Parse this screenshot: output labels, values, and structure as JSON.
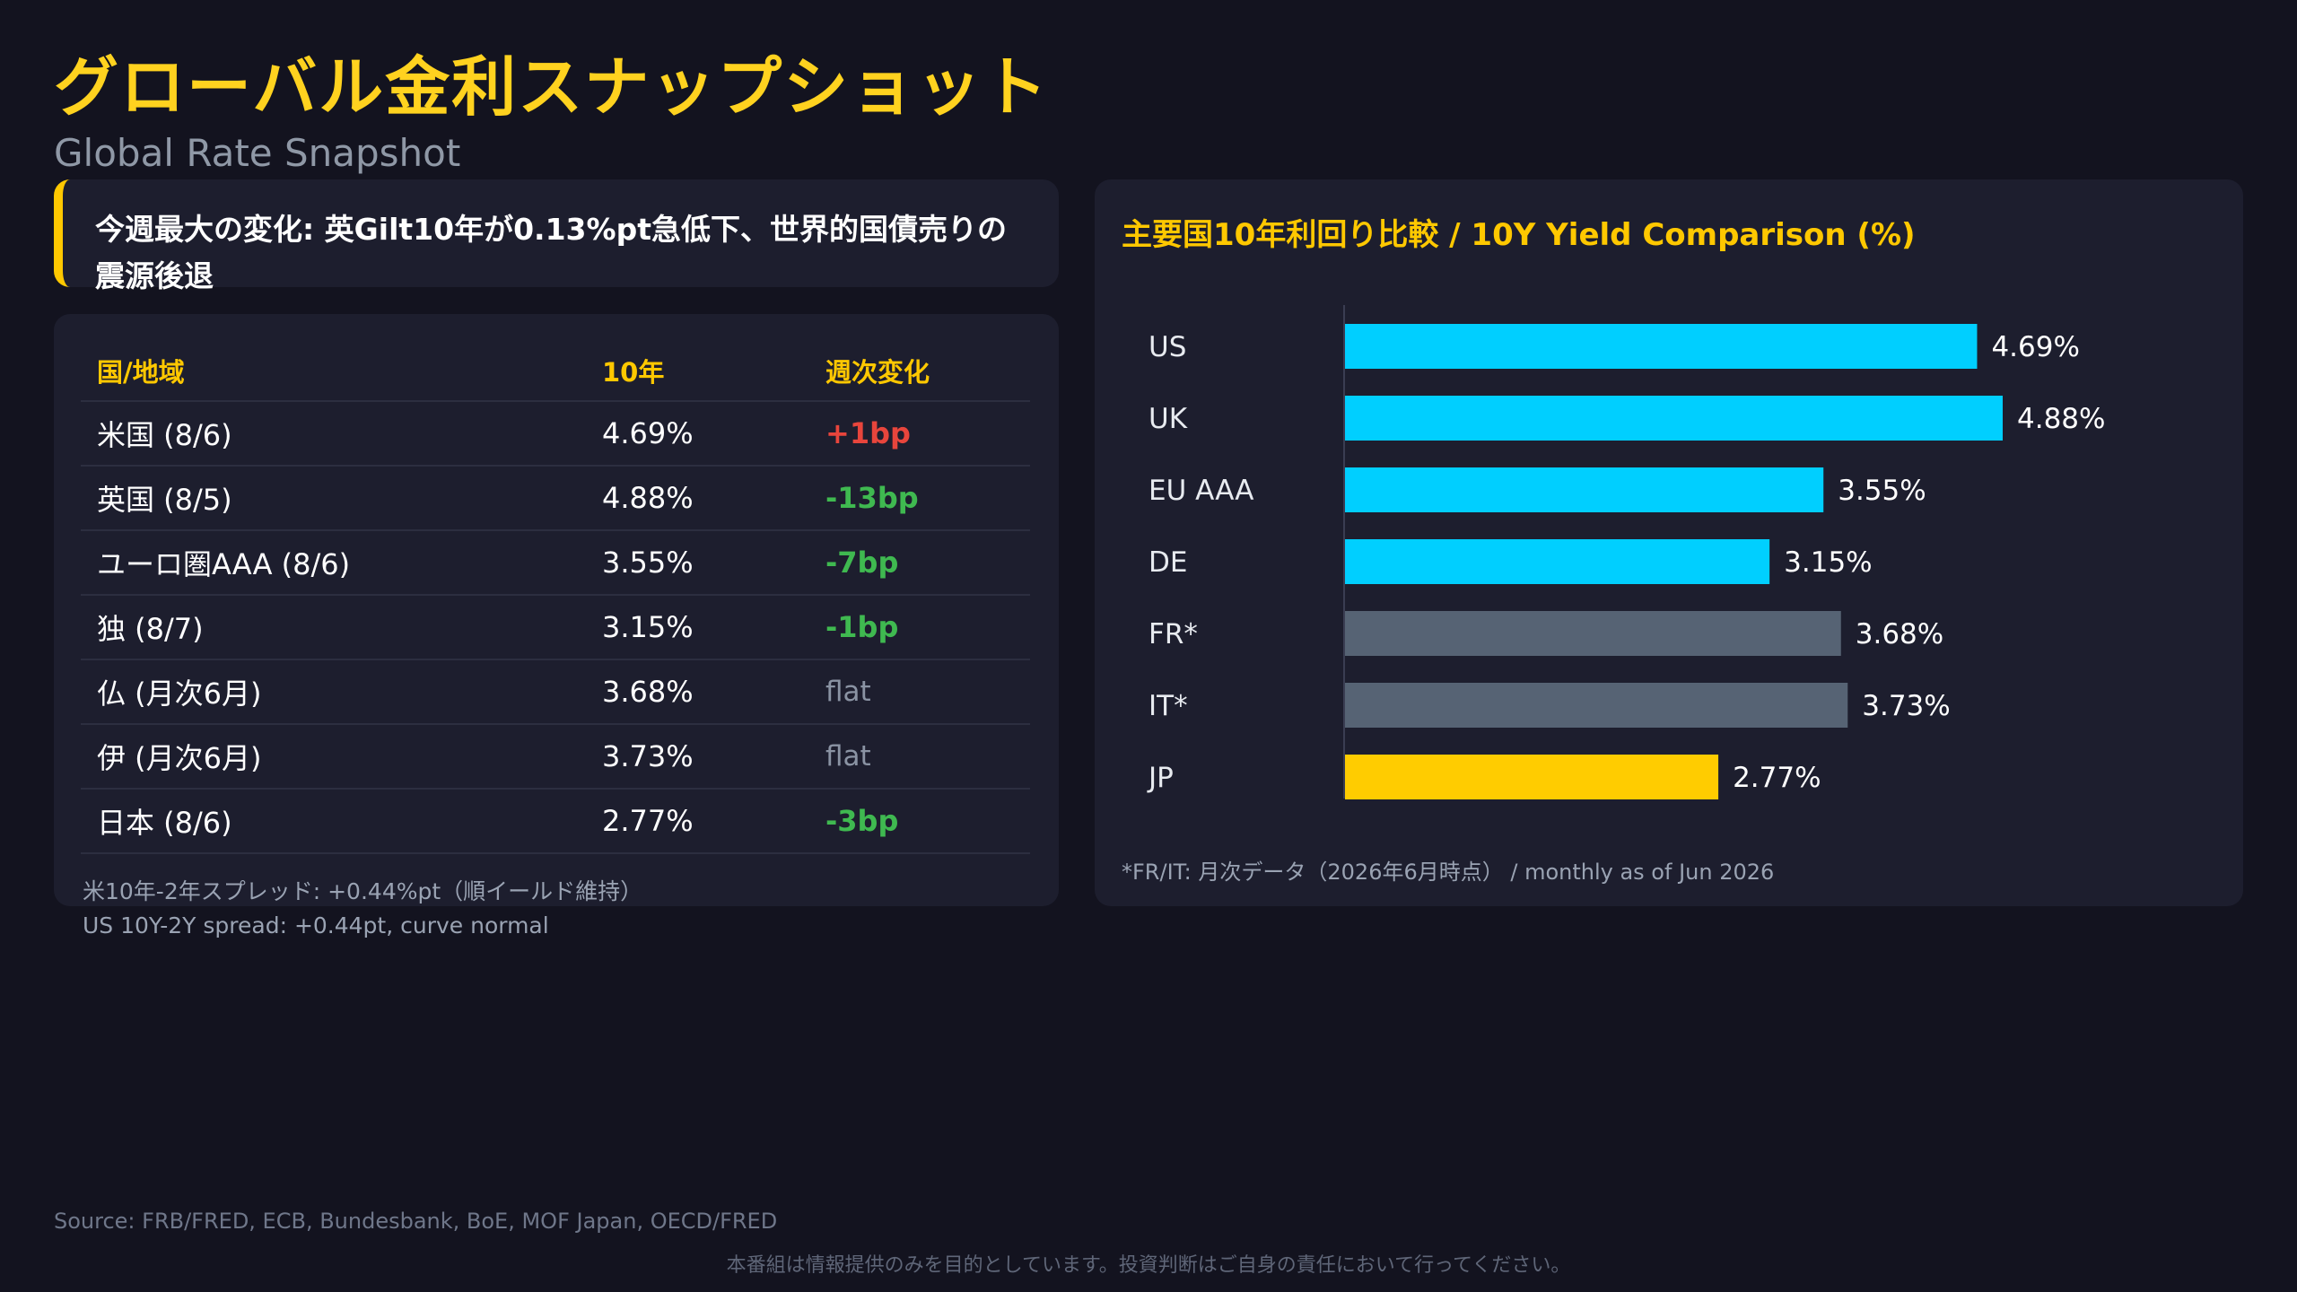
{
  "header": {
    "title": "グローバル金利スナップショット",
    "subtitle": "Global Rate Snapshot"
  },
  "callout": {
    "text": "今週最大の変化: 英Gilt10年が0.13%pt急低下、世界的国債売りの震源後退"
  },
  "table": {
    "headers": [
      "国/地域",
      "10年",
      "週次変化"
    ],
    "rows": [
      {
        "country": "米国 (8/6)",
        "yield": "4.69%",
        "change": "+1bp",
        "color": "#e8453c"
      },
      {
        "country": "英国 (8/5)",
        "yield": "4.88%",
        "change": "-13bp",
        "color": "#3fb950"
      },
      {
        "country": "ユーロ圏AAA (8/6)",
        "yield": "3.55%",
        "change": "-7bp",
        "color": "#3fb950"
      },
      {
        "country": "独 (8/7)",
        "yield": "3.15%",
        "change": "-1bp",
        "color": "#3fb950"
      },
      {
        "country": "仏 (月次6月)",
        "yield": "3.68%",
        "change": "flat",
        "color": "#8a93a3"
      },
      {
        "country": "伊 (月次6月)",
        "yield": "3.73%",
        "change": "flat",
        "color": "#8a93a3"
      },
      {
        "country": "日本 (8/6)",
        "yield": "2.77%",
        "change": "-3bp",
        "color": "#3fb950"
      }
    ],
    "spread_jp": "米10年-2年スプレッド: +0.44%pt（順イールド維持）",
    "spread_en": "US 10Y-2Y spread: +0.44pt, curve normal"
  },
  "chart_data": {
    "type": "bar",
    "orientation": "horizontal",
    "title": "主要国10年利回り比較 / 10Y Yield Comparison (%)",
    "categories": [
      "US",
      "UK",
      "EU AAA",
      "DE",
      "FR*",
      "IT*",
      "JP"
    ],
    "values": [
      4.69,
      4.88,
      3.55,
      3.15,
      3.68,
      3.73,
      2.77
    ],
    "value_labels": [
      "4.69%",
      "4.88%",
      "3.55%",
      "3.15%",
      "3.68%",
      "3.73%",
      "2.77%"
    ],
    "colors": [
      "#00cfff",
      "#00cfff",
      "#00cfff",
      "#00cfff",
      "#566374",
      "#566374",
      "#ffcc00"
    ],
    "xlim": [
      0,
      4.88
    ],
    "grid": false,
    "note": "*FR/IT: 月次データ（2026年6月時点） / monthly as of Jun 2026"
  },
  "footer": {
    "source": "Source: FRB/FRED, ECB, Bundesbank, BoE, MOF Japan, OECD/FRED",
    "disclaimer": "本番組は情報提供のみを目的としています。投資判断はご自身の責任において行ってください。"
  }
}
